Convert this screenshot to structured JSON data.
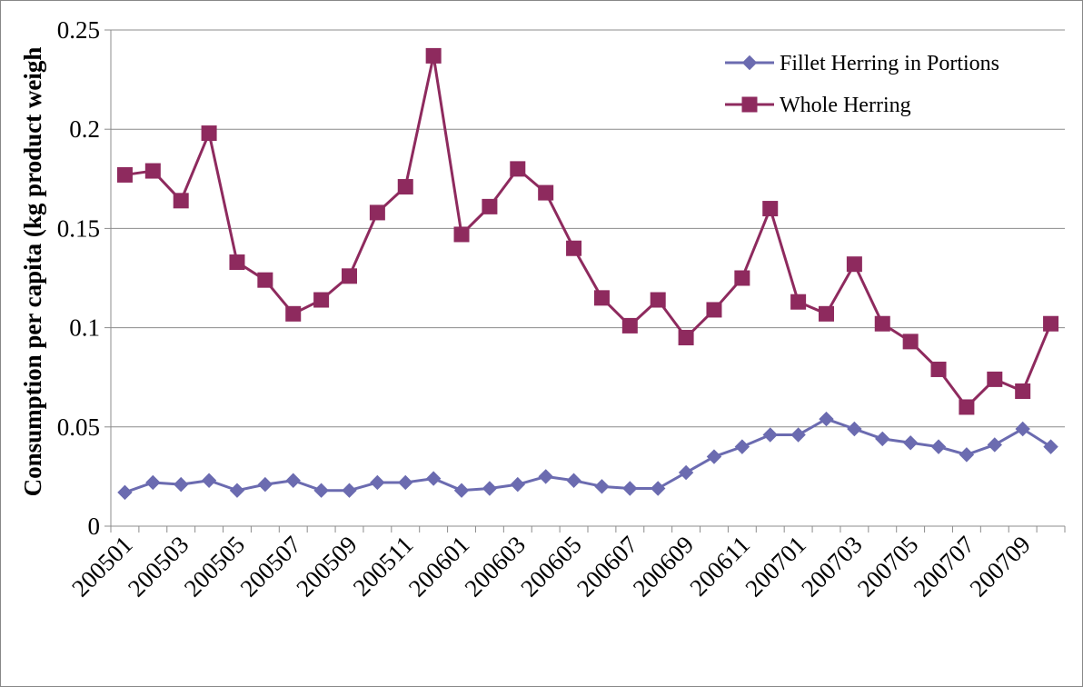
{
  "chart_data": {
    "type": "line",
    "title": "",
    "xlabel": "",
    "ylabel": "Consumption per capita (kg product weigh",
    "ylim": [
      0,
      0.25
    ],
    "yticks": [
      0,
      0.05,
      0.1,
      0.15,
      0.2,
      0.25
    ],
    "ytick_labels": [
      "0",
      "0.05",
      "0.1",
      "0.15",
      "0.2",
      "0.25"
    ],
    "grid": "horizontal",
    "legend_position": "top-right",
    "categories": [
      "200501",
      "200502",
      "200503",
      "200504",
      "200505",
      "200506",
      "200507",
      "200508",
      "200509",
      "200510",
      "200511",
      "200512",
      "200601",
      "200602",
      "200603",
      "200604",
      "200605",
      "200606",
      "200607",
      "200608",
      "200609",
      "200610",
      "200611",
      "200612",
      "200701",
      "200702",
      "200703",
      "200704",
      "200705",
      "200706",
      "200707",
      "200708",
      "200709",
      "200710"
    ],
    "xtick_labels": [
      "200501",
      "200503",
      "200505",
      "200507",
      "200509",
      "200511",
      "200601",
      "200603",
      "200605",
      "200607",
      "200609",
      "200611",
      "200701",
      "200703",
      "200705",
      "200707",
      "200709"
    ],
    "series": [
      {
        "name": "Fillet Herring in Portions",
        "color": "#6b6bb0",
        "marker": "diamond",
        "values": [
          0.017,
          0.022,
          0.021,
          0.023,
          0.018,
          0.021,
          0.023,
          0.018,
          0.018,
          0.022,
          0.022,
          0.024,
          0.018,
          0.019,
          0.021,
          0.025,
          0.023,
          0.02,
          0.019,
          0.019,
          0.027,
          0.035,
          0.04,
          0.046,
          0.046,
          0.054,
          0.049,
          0.044,
          0.042,
          0.04,
          0.036,
          0.041,
          0.049,
          0.04
        ]
      },
      {
        "name": "Whole Herring",
        "color": "#8e2a5e",
        "marker": "square",
        "values": [
          0.177,
          0.179,
          0.164,
          0.198,
          0.133,
          0.124,
          0.107,
          0.114,
          0.126,
          0.158,
          0.171,
          0.237,
          0.147,
          0.161,
          0.18,
          0.168,
          0.14,
          0.115,
          0.101,
          0.114,
          0.095,
          0.109,
          0.125,
          0.16,
          0.113,
          0.107,
          0.132,
          0.102,
          0.093,
          0.079,
          0.06,
          0.074,
          0.068,
          0.102
        ]
      }
    ]
  }
}
